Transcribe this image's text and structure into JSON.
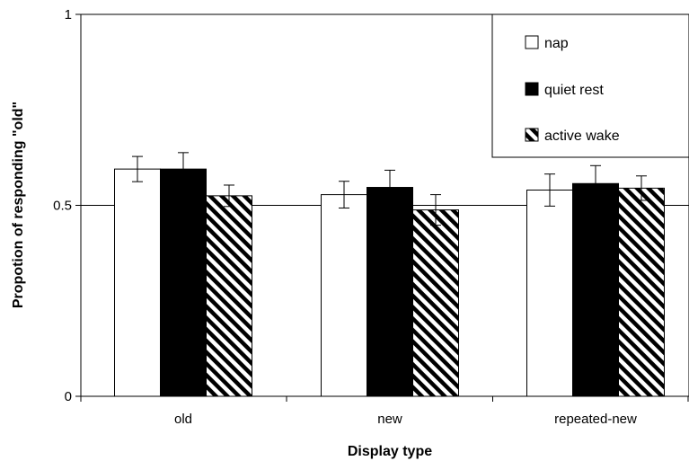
{
  "chart_data": {
    "type": "bar",
    "title": "",
    "xlabel": "Display type",
    "ylabel": "Propotion of responding \"old\"",
    "categories": [
      "old",
      "new",
      "repeated-new"
    ],
    "ylim": [
      0,
      1
    ],
    "yticks": [
      0,
      0.5,
      1
    ],
    "ytick_labels": [
      "0",
      "0.5",
      "1"
    ],
    "gridlines": [
      0.5
    ],
    "legend_position": "top-right",
    "series": [
      {
        "name": "nap",
        "fill": "#ffffff",
        "pattern": "none",
        "values": [
          0.595,
          0.528,
          0.54
        ],
        "errors": [
          0.033,
          0.035,
          0.042
        ]
      },
      {
        "name": "quiet rest",
        "fill": "#000000",
        "pattern": "none",
        "values": [
          0.595,
          0.547,
          0.557
        ],
        "errors": [
          0.043,
          0.045,
          0.047
        ]
      },
      {
        "name": "active wake",
        "fill": "#000000",
        "pattern": "diagonal-stripes",
        "values": [
          0.525,
          0.488,
          0.545
        ],
        "errors": [
          0.028,
          0.04,
          0.032
        ]
      }
    ]
  }
}
